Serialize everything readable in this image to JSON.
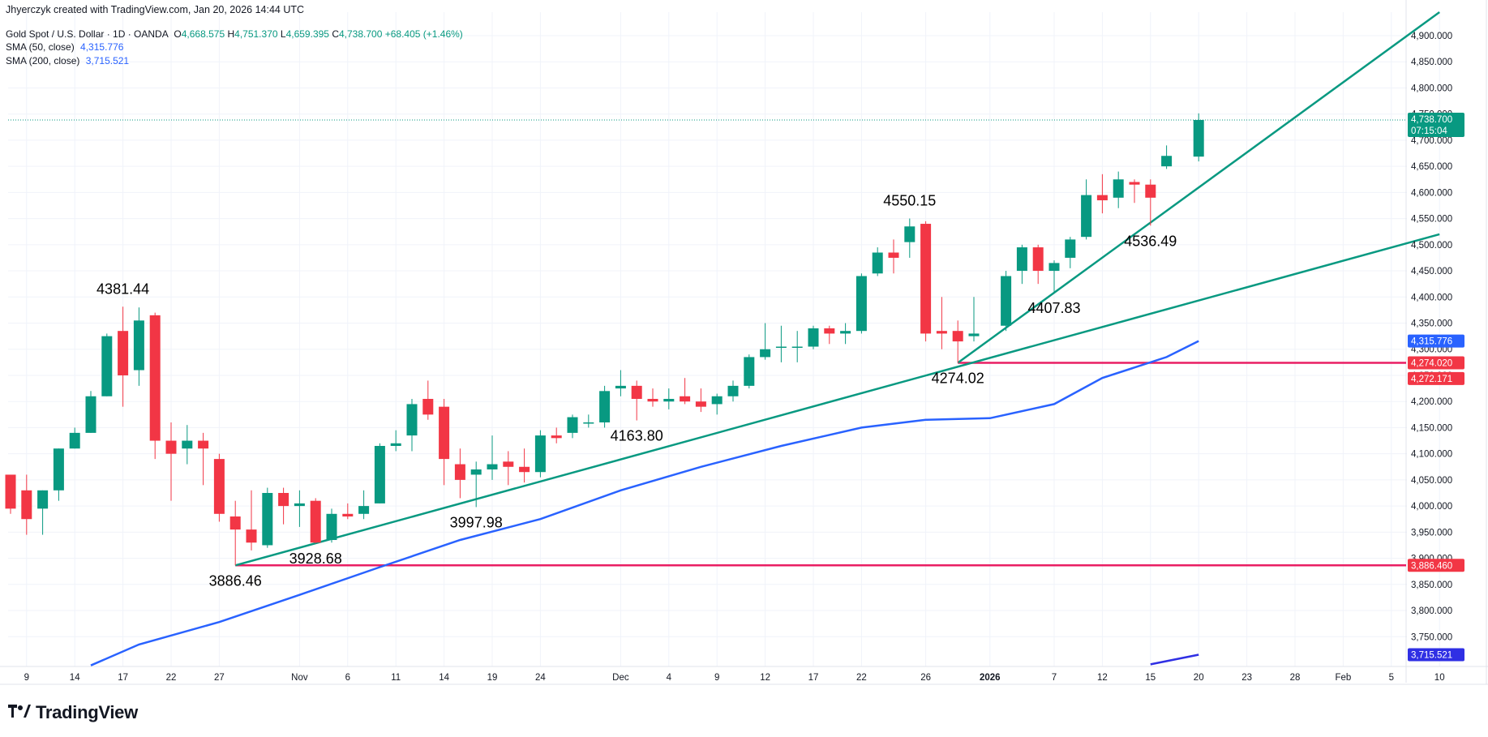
{
  "header": {
    "created_by": "Jhyerczyk created with TradingView.com, Jan 20, 2026 14:44 UTC",
    "symbol": "Gold Spot / U.S. Dollar · 1D · OANDA",
    "o_label": "O",
    "o_value": "4,668.575",
    "h_label": "H",
    "h_value": "4,751.370",
    "l_label": "L",
    "l_value": "4,659.395",
    "c_label": "C",
    "c_value": "4,738.700",
    "change": "+68.405 (+1.46%)",
    "sma50_label": "SMA (50, close)",
    "sma50_value": "4,315.776",
    "sma200_label": "SMA (200, close)",
    "sma200_value": "3,715.521"
  },
  "logo": {
    "text": "TradingView",
    "mark": "17"
  },
  "colors": {
    "up": "#089981",
    "down": "#f23645",
    "sma50": "#2962ff",
    "sma200": "#2f2fe4",
    "trend": "#089981",
    "support": "#f23645"
  },
  "chart_data": {
    "type": "candlestick",
    "y_ticks": [
      "3,750.000",
      "3,800.000",
      "3,850.000",
      "3,900.000",
      "3,950.000",
      "4,000.000",
      "4,050.000",
      "4,100.000",
      "4,150.000",
      "4,200.000",
      "4,250.000",
      "4,300.000",
      "4,350.000",
      "4,400.000",
      "4,450.000",
      "4,500.000",
      "4,550.000",
      "4,600.000",
      "4,650.000",
      "4,700.000",
      "4,750.000",
      "4,800.000",
      "4,850.000",
      "4,900.000"
    ],
    "y_tick_values": [
      3750,
      3800,
      3850,
      3900,
      3950,
      4000,
      4050,
      4100,
      4150,
      4200,
      4250,
      4300,
      4350,
      4400,
      4450,
      4500,
      4550,
      4600,
      4650,
      4700,
      4750,
      4800,
      4850,
      4900
    ],
    "ylim": [
      3693,
      4945
    ],
    "x_ticks": [
      {
        "label": "9",
        "date": "2025-10-09",
        "bold": false
      },
      {
        "label": "14",
        "date": "2025-10-14",
        "bold": false
      },
      {
        "label": "17",
        "date": "2025-10-17",
        "bold": false
      },
      {
        "label": "22",
        "date": "2025-10-22",
        "bold": false
      },
      {
        "label": "27",
        "date": "2025-10-27",
        "bold": false
      },
      {
        "label": "Nov",
        "date": "2025-11-03",
        "bold": false
      },
      {
        "label": "6",
        "date": "2025-11-06",
        "bold": false
      },
      {
        "label": "11",
        "date": "2025-11-11",
        "bold": false
      },
      {
        "label": "14",
        "date": "2025-11-14",
        "bold": false
      },
      {
        "label": "19",
        "date": "2025-11-19",
        "bold": false
      },
      {
        "label": "24",
        "date": "2025-11-24",
        "bold": false
      },
      {
        "label": "Dec",
        "date": "2025-12-01",
        "bold": false
      },
      {
        "label": "4",
        "date": "2025-12-04",
        "bold": false
      },
      {
        "label": "9",
        "date": "2025-12-09",
        "bold": false
      },
      {
        "label": "12",
        "date": "2025-12-12",
        "bold": false
      },
      {
        "label": "17",
        "date": "2025-12-17",
        "bold": false
      },
      {
        "label": "22",
        "date": "2025-12-22",
        "bold": false
      },
      {
        "label": "26",
        "date": "2025-12-26",
        "bold": false
      },
      {
        "label": "2026",
        "date": "2026-01-01",
        "bold": true
      },
      {
        "label": "7",
        "date": "2026-01-07",
        "bold": false
      },
      {
        "label": "12",
        "date": "2026-01-12",
        "bold": false
      },
      {
        "label": "15",
        "date": "2026-01-15",
        "bold": false
      },
      {
        "label": "20",
        "date": "2026-01-20",
        "bold": false
      },
      {
        "label": "23",
        "date": "2026-01-23",
        "bold": false
      },
      {
        "label": "28",
        "date": "2026-01-28",
        "bold": false
      },
      {
        "label": "Feb",
        "date": "2026-02-02",
        "bold": false
      },
      {
        "label": "5",
        "date": "2026-02-05",
        "bold": false
      },
      {
        "label": "10",
        "date": "2026-02-10",
        "bold": false
      }
    ],
    "candles": [
      {
        "date": "2025-10-08",
        "o": 4060,
        "h": 4060,
        "l": 3985,
        "c": 3995
      },
      {
        "date": "2025-10-09",
        "o": 4030,
        "h": 4060,
        "l": 3945,
        "c": 3975
      },
      {
        "date": "2025-10-10",
        "o": 3995,
        "h": 4030,
        "l": 3945,
        "c": 4030
      },
      {
        "date": "2025-10-13",
        "o": 4030,
        "h": 4110,
        "l": 4010,
        "c": 4110
      },
      {
        "date": "2025-10-14",
        "o": 4110,
        "h": 4150,
        "l": 4110,
        "c": 4140
      },
      {
        "date": "2025-10-15",
        "o": 4140,
        "h": 4220,
        "l": 4140,
        "c": 4210
      },
      {
        "date": "2025-10-16",
        "o": 4210,
        "h": 4330,
        "l": 4210,
        "c": 4325
      },
      {
        "date": "2025-10-17",
        "o": 4335,
        "h": 4381.44,
        "l": 4190,
        "c": 4250
      },
      {
        "date": "2025-10-20",
        "o": 4260,
        "h": 4380,
        "l": 4230,
        "c": 4355
      },
      {
        "date": "2025-10-21",
        "o": 4365,
        "h": 4370,
        "l": 4090,
        "c": 4125
      },
      {
        "date": "2025-10-22",
        "o": 4125,
        "h": 4160,
        "l": 4010,
        "c": 4100
      },
      {
        "date": "2025-10-23",
        "o": 4110,
        "h": 4155,
        "l": 4080,
        "c": 4125
      },
      {
        "date": "2025-10-24",
        "o": 4125,
        "h": 4140,
        "l": 4040,
        "c": 4110
      },
      {
        "date": "2025-10-27",
        "o": 4090,
        "h": 4100,
        "l": 3970,
        "c": 3985
      },
      {
        "date": "2025-10-28",
        "o": 3980,
        "h": 4010,
        "l": 3886.46,
        "c": 3955
      },
      {
        "date": "2025-10-29",
        "o": 3955,
        "h": 4030,
        "l": 3915,
        "c": 3930
      },
      {
        "date": "2025-10-30",
        "o": 3925,
        "h": 4035,
        "l": 3920,
        "c": 4025
      },
      {
        "date": "2025-10-31",
        "o": 4025,
        "h": 4035,
        "l": 3965,
        "c": 4000
      },
      {
        "date": "2025-11-03",
        "o": 4000,
        "h": 4030,
        "l": 3960,
        "c": 4005
      },
      {
        "date": "2025-11-04",
        "o": 4010,
        "h": 4015,
        "l": 3928.68,
        "c": 3930
      },
      {
        "date": "2025-11-05",
        "o": 3935,
        "h": 3995,
        "l": 3930,
        "c": 3985
      },
      {
        "date": "2025-11-06",
        "o": 3985,
        "h": 4005,
        "l": 3975,
        "c": 3980
      },
      {
        "date": "2025-11-07",
        "o": 3985,
        "h": 4030,
        "l": 3975,
        "c": 4000
      },
      {
        "date": "2025-11-10",
        "o": 4005,
        "h": 4120,
        "l": 4005,
        "c": 4115
      },
      {
        "date": "2025-11-11",
        "o": 4115,
        "h": 4145,
        "l": 4105,
        "c": 4120
      },
      {
        "date": "2025-11-12",
        "o": 4135,
        "h": 4205,
        "l": 4105,
        "c": 4195
      },
      {
        "date": "2025-11-13",
        "o": 4205,
        "h": 4240,
        "l": 4165,
        "c": 4175
      },
      {
        "date": "2025-11-14",
        "o": 4190,
        "h": 4205,
        "l": 4040,
        "c": 4090
      },
      {
        "date": "2025-11-17",
        "o": 4080,
        "h": 4110,
        "l": 4015,
        "c": 4050
      },
      {
        "date": "2025-11-18",
        "o": 4060,
        "h": 4085,
        "l": 3997.98,
        "c": 4070
      },
      {
        "date": "2025-11-19",
        "o": 4070,
        "h": 4135,
        "l": 4050,
        "c": 4080
      },
      {
        "date": "2025-11-20",
        "o": 4085,
        "h": 4105,
        "l": 4040,
        "c": 4075
      },
      {
        "date": "2025-11-21",
        "o": 4075,
        "h": 4110,
        "l": 4045,
        "c": 4065
      },
      {
        "date": "2025-11-24",
        "o": 4065,
        "h": 4145,
        "l": 4055,
        "c": 4135
      },
      {
        "date": "2025-11-25",
        "o": 4135,
        "h": 4150,
        "l": 4120,
        "c": 4130
      },
      {
        "date": "2025-11-26",
        "o": 4140,
        "h": 4175,
        "l": 4130,
        "c": 4170
      },
      {
        "date": "2025-11-27",
        "o": 4160,
        "h": 4175,
        "l": 4150,
        "c": 4160
      },
      {
        "date": "2025-11-28",
        "o": 4160,
        "h": 4230,
        "l": 4150,
        "c": 4220
      },
      {
        "date": "2025-12-01",
        "o": 4225,
        "h": 4260,
        "l": 4210,
        "c": 4230
      },
      {
        "date": "2025-12-02",
        "o": 4230,
        "h": 4240,
        "l": 4163.8,
        "c": 4205
      },
      {
        "date": "2025-12-03",
        "o": 4205,
        "h": 4225,
        "l": 4190,
        "c": 4200
      },
      {
        "date": "2025-12-04",
        "o": 4200,
        "h": 4225,
        "l": 4185,
        "c": 4205
      },
      {
        "date": "2025-12-05",
        "o": 4210,
        "h": 4245,
        "l": 4195,
        "c": 4200
      },
      {
        "date": "2025-12-08",
        "o": 4200,
        "h": 4225,
        "l": 4180,
        "c": 4190
      },
      {
        "date": "2025-12-09",
        "o": 4195,
        "h": 4215,
        "l": 4175,
        "c": 4210
      },
      {
        "date": "2025-12-10",
        "o": 4210,
        "h": 4240,
        "l": 4200,
        "c": 4230
      },
      {
        "date": "2025-12-11",
        "o": 4230,
        "h": 4290,
        "l": 4225,
        "c": 4285
      },
      {
        "date": "2025-12-12",
        "o": 4285,
        "h": 4350,
        "l": 4280,
        "c": 4300
      },
      {
        "date": "2025-12-15",
        "o": 4305,
        "h": 4345,
        "l": 4275,
        "c": 4305
      },
      {
        "date": "2025-12-16",
        "o": 4305,
        "h": 4335,
        "l": 4275,
        "c": 4305
      },
      {
        "date": "2025-12-17",
        "o": 4305,
        "h": 4345,
        "l": 4300,
        "c": 4340
      },
      {
        "date": "2025-12-18",
        "o": 4340,
        "h": 4345,
        "l": 4310,
        "c": 4330
      },
      {
        "date": "2025-12-19",
        "o": 4330,
        "h": 4350,
        "l": 4310,
        "c": 4335
      },
      {
        "date": "2025-12-22",
        "o": 4335,
        "h": 4445,
        "l": 4330,
        "c": 4440
      },
      {
        "date": "2025-12-23",
        "o": 4445,
        "h": 4495,
        "l": 4440,
        "c": 4485
      },
      {
        "date": "2025-12-24",
        "o": 4485,
        "h": 4510,
        "l": 4445,
        "c": 4475
      },
      {
        "date": "2025-12-25",
        "o": 4505,
        "h": 4550.15,
        "l": 4475,
        "c": 4535
      },
      {
        "date": "2025-12-26",
        "o": 4540,
        "h": 4545,
        "l": 4315,
        "c": 4330
      },
      {
        "date": "2025-12-29",
        "o": 4335,
        "h": 4400,
        "l": 4300,
        "c": 4330
      },
      {
        "date": "2025-12-30",
        "o": 4335,
        "h": 4355,
        "l": 4274.02,
        "c": 4315
      },
      {
        "date": "2025-12-31",
        "o": 4325,
        "h": 4400,
        "l": 4315,
        "c": 4330
      },
      {
        "date": "2026-01-02",
        "o": 4345,
        "h": 4450,
        "l": 4335,
        "c": 4440
      },
      {
        "date": "2026-01-05",
        "o": 4450,
        "h": 4500,
        "l": 4425,
        "c": 4495
      },
      {
        "date": "2026-01-06",
        "o": 4495,
        "h": 4500,
        "l": 4425,
        "c": 4450
      },
      {
        "date": "2026-01-07",
        "o": 4450,
        "h": 4470,
        "l": 4407.83,
        "c": 4465
      },
      {
        "date": "2026-01-08",
        "o": 4475,
        "h": 4515,
        "l": 4455,
        "c": 4510
      },
      {
        "date": "2026-01-09",
        "o": 4515,
        "h": 4625,
        "l": 4510,
        "c": 4595
      },
      {
        "date": "2026-01-12",
        "o": 4595,
        "h": 4635,
        "l": 4560,
        "c": 4585
      },
      {
        "date": "2026-01-13",
        "o": 4590,
        "h": 4640,
        "l": 4570,
        "c": 4625
      },
      {
        "date": "2026-01-14",
        "o": 4620,
        "h": 4625,
        "l": 4580,
        "c": 4615
      },
      {
        "date": "2026-01-15",
        "o": 4615,
        "h": 4625,
        "l": 4536.49,
        "c": 4590
      },
      {
        "date": "2026-01-16",
        "o": 4650,
        "h": 4690,
        "l": 4645,
        "c": 4670
      },
      {
        "date": "2026-01-20",
        "o": 4668.575,
        "h": 4751.37,
        "l": 4659.395,
        "c": 4738.7
      }
    ],
    "sma50": [
      [
        "2025-10-15",
        3695
      ],
      [
        "2025-10-20",
        3735
      ],
      [
        "2025-10-27",
        3778
      ],
      [
        "2025-11-03",
        3830
      ],
      [
        "2025-11-10",
        3883
      ],
      [
        "2025-11-17",
        3935
      ],
      [
        "2025-11-24",
        3975
      ],
      [
        "2025-12-01",
        4030
      ],
      [
        "2025-12-08",
        4075
      ],
      [
        "2025-12-15",
        4115
      ],
      [
        "2025-12-22",
        4150
      ],
      [
        "2025-12-26",
        4165
      ],
      [
        "2026-01-01",
        4168
      ],
      [
        "2026-01-07",
        4195
      ],
      [
        "2026-01-12",
        4245
      ],
      [
        "2026-01-16",
        4285
      ],
      [
        "2026-01-20",
        4315.776
      ]
    ],
    "sma200": [
      [
        "2026-01-15",
        3697
      ],
      [
        "2026-01-20",
        3715.521
      ]
    ],
    "trendlines": [
      {
        "from": [
          "2025-10-28",
          3886.46
        ],
        "to": [
          "2026-02-10",
          4520
        ]
      },
      {
        "from": [
          "2025-12-30",
          4274.02
        ],
        "to": [
          "2026-02-10",
          4945
        ]
      }
    ],
    "support_lines": [
      {
        "from": "2025-10-28",
        "price": 3886.46
      },
      {
        "from": "2025-12-30",
        "price": 4274.02
      }
    ],
    "annotations": [
      {
        "text": "4381.44",
        "date": "2025-10-17",
        "price": 4381.44,
        "pos": "above"
      },
      {
        "text": "3886.46",
        "date": "2025-10-28",
        "price": 3886.46,
        "pos": "below"
      },
      {
        "text": "3928.68",
        "date": "2025-11-04",
        "price": 3928.68,
        "pos": "below"
      },
      {
        "text": "3997.98",
        "date": "2025-11-18",
        "price": 3997.98,
        "pos": "below"
      },
      {
        "text": "4163.80",
        "date": "2025-12-02",
        "price": 4163.8,
        "pos": "below"
      },
      {
        "text": "4550.15",
        "date": "2025-12-25",
        "price": 4550.15,
        "pos": "above"
      },
      {
        "text": "4274.02",
        "date": "2025-12-30",
        "price": 4274.02,
        "pos": "below"
      },
      {
        "text": "4407.83",
        "date": "2026-01-07",
        "price": 4407.83,
        "pos": "below"
      },
      {
        "text": "4536.49",
        "date": "2026-01-15",
        "price": 4536.49,
        "pos": "below"
      }
    ],
    "price_badges": [
      {
        "text": "4,738.700",
        "sub": "07:15:04",
        "price": 4738.7,
        "color": "#089981"
      },
      {
        "text": "4,315.776",
        "price": 4315.776,
        "color": "#2962ff"
      },
      {
        "text": "4,274.020",
        "price": 4274.02,
        "color": "#f23645"
      },
      {
        "text": "4,272.171",
        "price": 4244,
        "color": "#f23645"
      },
      {
        "text": "3,886.460",
        "price": 3886.46,
        "color": "#f23645"
      },
      {
        "text": "3,715.521",
        "price": 3715.521,
        "color": "#2f2fe4"
      }
    ],
    "last_price": 4738.7
  }
}
